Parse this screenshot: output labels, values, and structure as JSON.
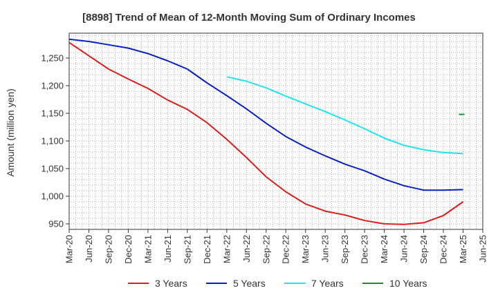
{
  "chart_data": {
    "type": "line",
    "title": "[8898]  Trend of Mean of 12-Month Moving Sum of Ordinary Incomes",
    "ylabel": "Amount (million yen)",
    "xlabel": "",
    "ylim": [
      940,
      1295
    ],
    "yticks": [
      950,
      1000,
      1050,
      1100,
      1150,
      1200,
      1250
    ],
    "ytick_labels": [
      "950",
      "1,000",
      "1,050",
      "1,100",
      "1,150",
      "1,200",
      "1,250"
    ],
    "x_tick_labels": [
      "Mar-20",
      "Jun-20",
      "Sep-20",
      "Dec-20",
      "Mar-21",
      "Jun-21",
      "Sep-21",
      "Dec-21",
      "Mar-22",
      "Jun-22",
      "Sep-22",
      "Dec-22",
      "Mar-23",
      "Jun-23",
      "Sep-23",
      "Dec-23",
      "Mar-24",
      "Jun-24",
      "Sep-24",
      "Dec-24",
      "Mar-25",
      "Jun-25"
    ],
    "grid": true,
    "legend_position": "bottom",
    "series": [
      {
        "name": "3 Years",
        "color": "#e01b1b",
        "start_index": 0,
        "values": [
          1278,
          1254,
          1230,
          1212,
          1195,
          1174,
          1157,
          1133,
          1103,
          1070,
          1035,
          1008,
          986,
          973,
          966,
          956,
          950,
          949,
          952,
          965,
          990
        ]
      },
      {
        "name": "5 Years",
        "color": "#0a1ec8",
        "start_index": 0,
        "values": [
          1284,
          1280,
          1274,
          1268,
          1258,
          1245,
          1230,
          1205,
          1182,
          1158,
          1132,
          1108,
          1089,
          1073,
          1058,
          1046,
          1031,
          1019,
          1011,
          1011,
          1012
        ]
      },
      {
        "name": "7 Years",
        "color": "#1de6ee",
        "start_index": 8,
        "values": [
          1216,
          1208,
          1196,
          1181,
          1167,
          1153,
          1138,
          1122,
          1105,
          1092,
          1084,
          1079,
          1077
        ]
      },
      {
        "name": "10 Years",
        "color": "#228b22",
        "start_index": 20,
        "values": [
          1148
        ]
      }
    ]
  }
}
